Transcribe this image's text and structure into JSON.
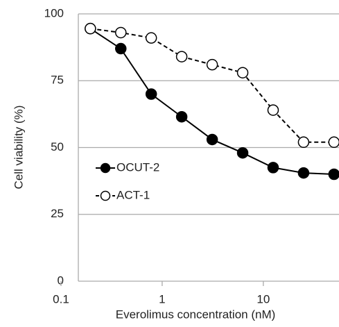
{
  "chart_data": {
    "type": "line",
    "x_label": "Everolimus concentration (nM)",
    "y_label": "Cell viability (%)",
    "x": [
      0.195,
      0.39,
      0.78,
      1.56,
      3.125,
      6.25,
      12.5,
      25,
      50
    ],
    "series": [
      {
        "name": "OCUT-2",
        "color": "#000000",
        "marker": "filled",
        "dash": "solid",
        "values": [
          94.5,
          87,
          70,
          61.5,
          53,
          48,
          42.5,
          40.5,
          40
        ]
      },
      {
        "name": "ACT-1",
        "color": "#000000",
        "marker": "open",
        "dash": "dashed",
        "values": [
          94.5,
          93,
          91,
          84,
          81,
          78,
          64,
          52,
          52
        ]
      }
    ],
    "xlim": [
      0.1,
      56
    ],
    "xticks": [
      0.1,
      1,
      10
    ],
    "xscale": "log",
    "ylim": [
      0,
      100
    ],
    "yticks": [
      0,
      25,
      50,
      75,
      100
    ],
    "grid": true,
    "legend": "left"
  }
}
